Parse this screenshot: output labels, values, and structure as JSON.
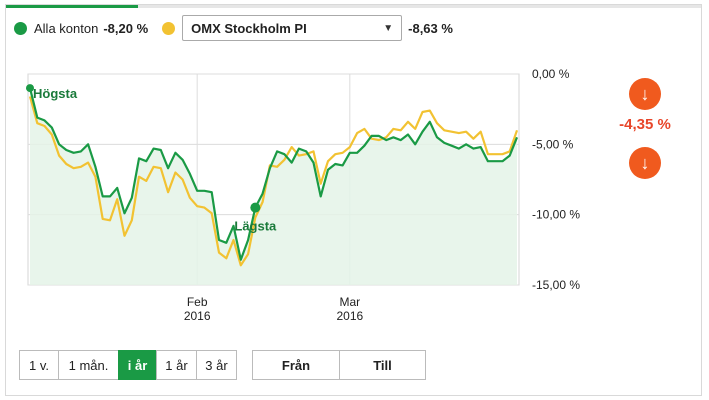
{
  "legend": {
    "series_a": {
      "label": "Alla konton",
      "value": "-8,20 %",
      "color": "#1a9a45"
    },
    "series_b_value": "-8,63 %",
    "series_b_color": "#f2c232",
    "select": {
      "selected": "OMX Stockholm PI",
      "arrow_icon": "caret-down-icon"
    }
  },
  "progress": {
    "fraction": 0.19
  },
  "side": {
    "change": "-4,35 %",
    "icon": "arrow-down-icon"
  },
  "range_buttons": [
    {
      "label": "1 v.",
      "active": false
    },
    {
      "label": "1 mån.",
      "active": false
    },
    {
      "label": "i år",
      "active": true
    },
    {
      "label": "1 år",
      "active": false
    },
    {
      "label": "3 år",
      "active": false
    }
  ],
  "date_buttons": [
    {
      "label": "Från"
    },
    {
      "label": "Till"
    }
  ],
  "chart_data": {
    "type": "line",
    "y_ticks": [
      "0,00 %",
      "-5,00 %",
      "-10,00 %",
      "-15,00 %"
    ],
    "y_tick_values": [
      0,
      -5,
      -10,
      -15
    ],
    "ylim": [
      -15,
      0
    ],
    "x_labels": [
      {
        "month": "Feb",
        "year": "2016",
        "index": 23
      },
      {
        "month": "Mar",
        "year": "2016",
        "index": 44
      }
    ],
    "annotations": {
      "high": "Högsta",
      "low": "Lägsta",
      "high_index": 0,
      "low_index": 31
    },
    "series": [
      {
        "color": "#1a9a45",
        "values": [
          -1.0,
          -3.1,
          -3.3,
          -3.8,
          -5.0,
          -5.4,
          -5.6,
          -5.5,
          -5.0,
          -6.6,
          -8.7,
          -8.7,
          -8.1,
          -9.9,
          -8.8,
          -6.0,
          -6.2,
          -5.3,
          -5.4,
          -6.7,
          -5.6,
          -6.1,
          -7.1,
          -8.3,
          -8.3,
          -8.4,
          -11.8,
          -12.0,
          -10.8,
          -13.2,
          -11.8,
          -9.5,
          -8.5,
          -6.7,
          -5.5,
          -5.7,
          -6.3,
          -5.3,
          -5.5,
          -6.3,
          -8.7,
          -6.8,
          -6.4,
          -6.5,
          -5.6,
          -5.6,
          -5.1,
          -4.4,
          -4.4,
          -4.7,
          -4.5,
          -4.7,
          -4.3,
          -5.0,
          -4.1,
          -3.4,
          -4.5,
          -4.9,
          -5.1,
          -5.3,
          -5.0,
          -5.3,
          -5.2,
          -6.2,
          -6.2,
          -6.2,
          -5.8,
          -4.5
        ]
      },
      {
        "color": "#f2c232",
        "values": [
          -1.6,
          -3.5,
          -3.7,
          -4.3,
          -5.8,
          -6.4,
          -6.7,
          -6.6,
          -6.3,
          -7.3,
          -10.3,
          -10.4,
          -8.9,
          -11.5,
          -10.4,
          -7.3,
          -7.6,
          -6.6,
          -6.7,
          -8.4,
          -7.0,
          -7.5,
          -8.8,
          -9.4,
          -9.5,
          -9.9,
          -12.7,
          -13.1,
          -11.8,
          -13.6,
          -12.8,
          -10.2,
          -9.1,
          -6.5,
          -6.6,
          -6.1,
          -5.2,
          -5.8,
          -5.7,
          -5.5,
          -7.8,
          -6.2,
          -5.7,
          -5.6,
          -5.2,
          -4.2,
          -3.9,
          -4.6,
          -4.7,
          -4.5,
          -3.9,
          -4.0,
          -3.4,
          -3.9,
          -2.7,
          -2.6,
          -3.5,
          -4.0,
          -4.1,
          -4.2,
          -4.1,
          -4.6,
          -4.1,
          -5.7,
          -5.7,
          -5.7,
          -5.5,
          -4.0
        ]
      }
    ]
  }
}
